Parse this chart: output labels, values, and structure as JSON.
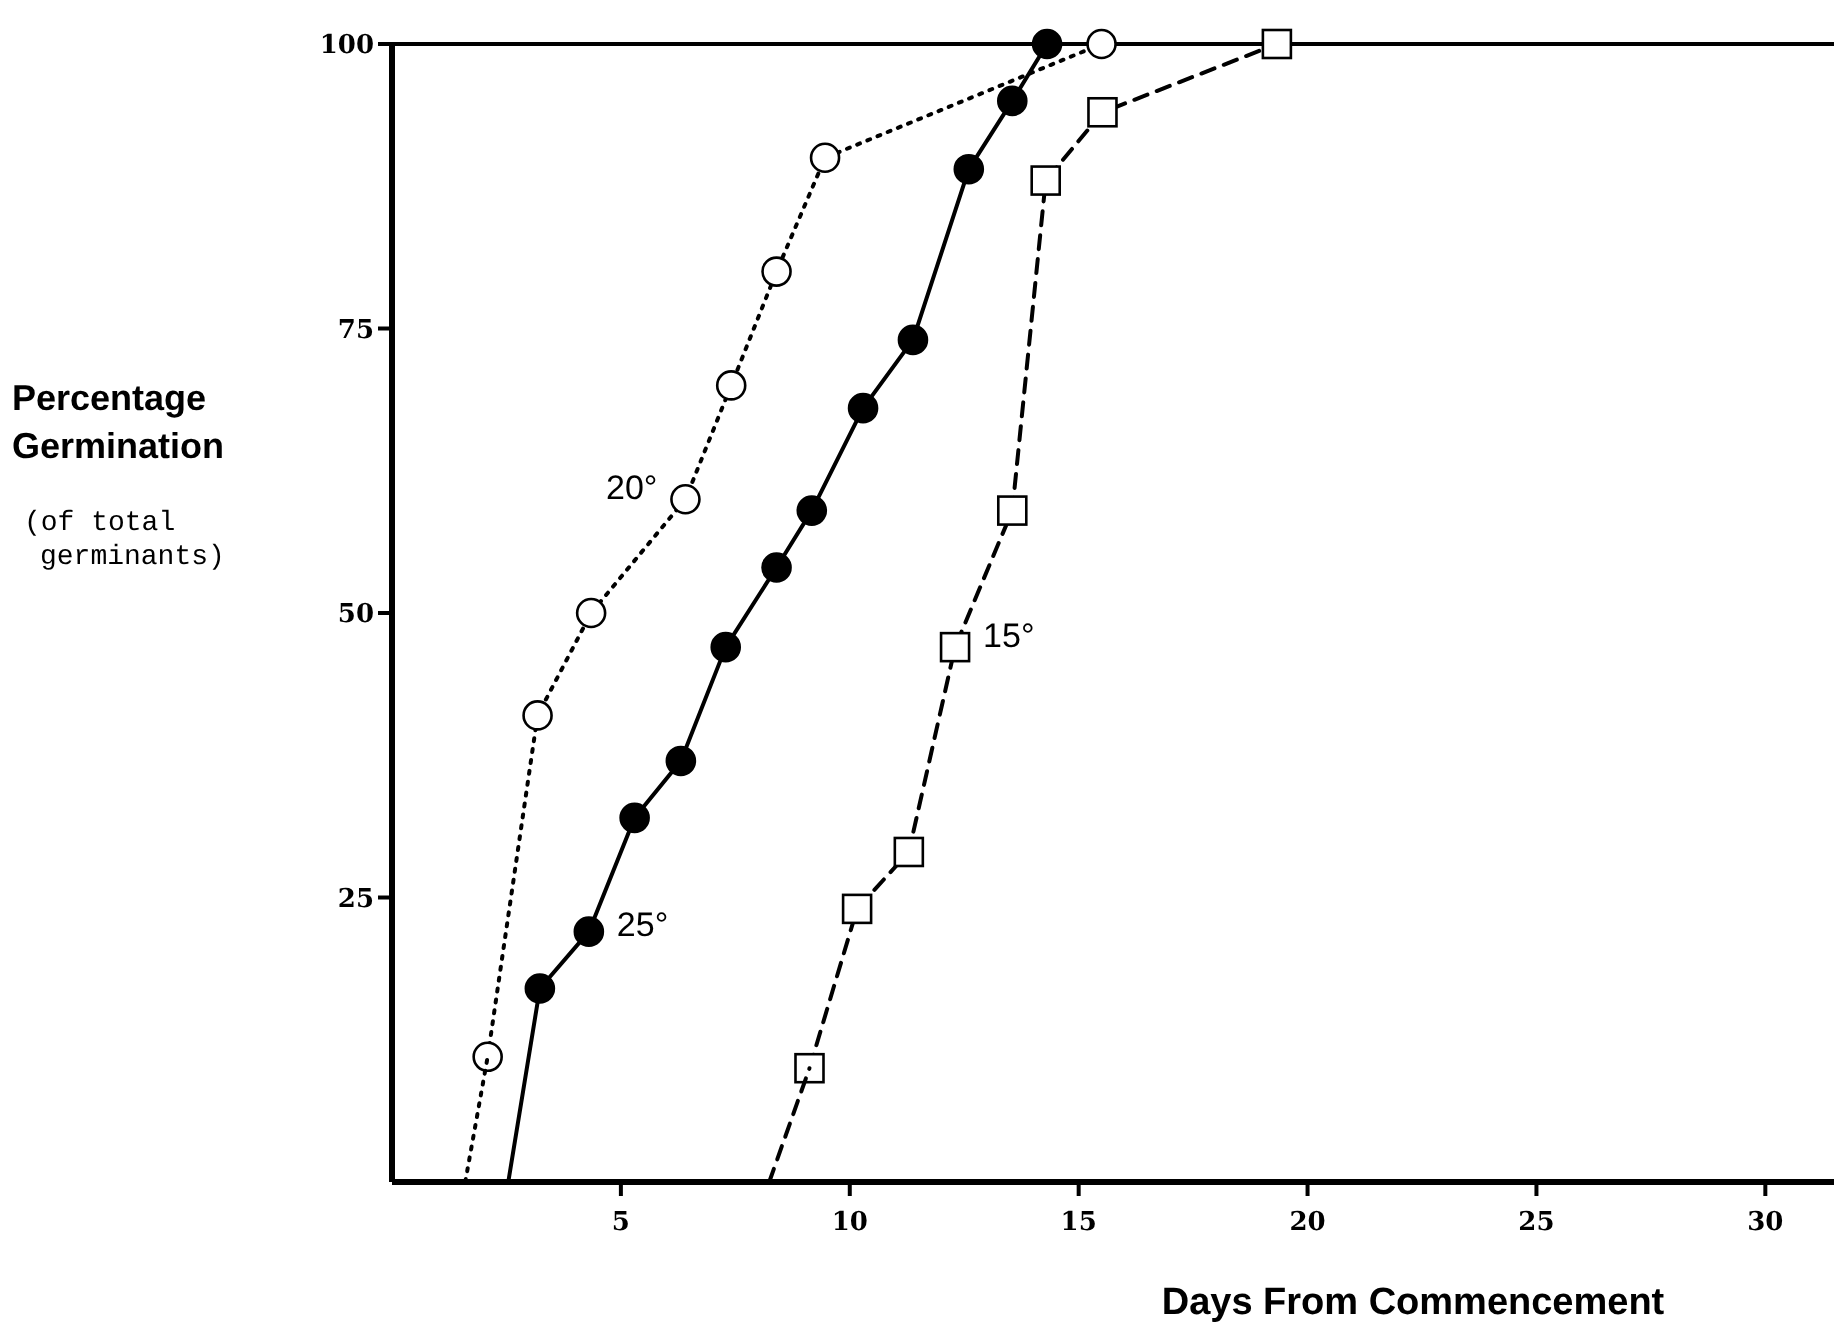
{
  "chart_data": {
    "type": "line",
    "xlabel": "Days From Commencement",
    "ylabel": "Percentage Germination",
    "xlim": [
      0,
      31.5
    ],
    "ylim": [
      0,
      100
    ],
    "xticks": [
      5,
      10,
      15,
      20,
      25,
      30
    ],
    "yticks": [
      25,
      50,
      75,
      100
    ],
    "grid": false,
    "series": [
      {
        "name": "20°",
        "color": "#000000",
        "marker": "circle",
        "line_style": "dotted",
        "x": [
          2.09,
          3.18,
          4.35,
          6.41,
          7.41,
          8.4,
          9.46,
          15.5
        ],
        "values": [
          11,
          41,
          50,
          60,
          70,
          80,
          90,
          100
        ]
      },
      {
        "name": "25°",
        "color": "#000000",
        "marker": "circle",
        "line_style": "solid",
        "x": [
          3.23,
          4.3,
          5.3,
          6.31,
          7.29,
          8.4,
          9.17,
          10.29,
          11.38,
          12.6,
          13.55,
          14.31
        ],
        "values": [
          17,
          22,
          32,
          37,
          47,
          54,
          59,
          68,
          74,
          89,
          95,
          100
        ]
      },
      {
        "name": "15°",
        "color": "#000000",
        "marker": "square",
        "line_style": "dashed",
        "x": [
          9.12,
          10.16,
          11.29,
          12.3,
          13.55,
          14.28,
          15.52,
          19.33
        ],
        "values": [
          10,
          24,
          29,
          47,
          59,
          88,
          94,
          100
        ]
      },
      {
        "color": "#000000",
        "marker": "none",
        "line_style": "dotted",
        "x": [
          1.6,
          2.09
        ],
        "values": [
          0,
          11
        ]
      },
      {
        "color": "#000000",
        "marker": "none",
        "line_style": "solid",
        "x": [
          2.54,
          3.23
        ],
        "values": [
          0,
          17
        ]
      },
      {
        "color": "#000000",
        "marker": "none",
        "line_style": "dashed",
        "x": [
          8.24,
          9.12
        ],
        "values": [
          0,
          10
        ]
      }
    ],
    "annotations": [
      "(of total\ngerminants)"
    ]
  }
}
